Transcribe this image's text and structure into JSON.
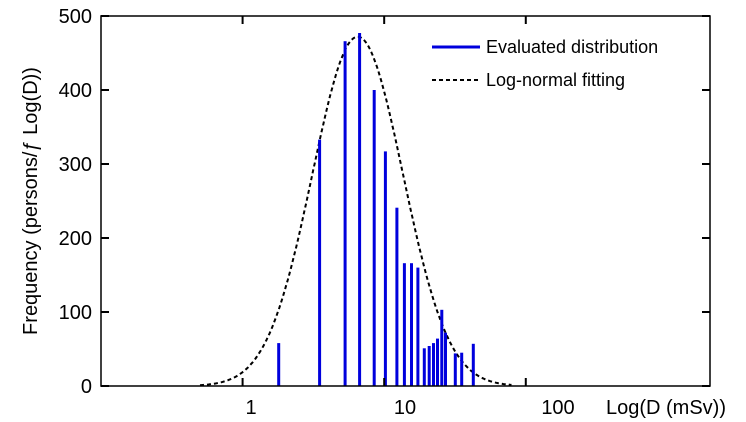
{
  "chart_data": {
    "type": "bar",
    "xscale": "log",
    "xlim": [
      0.1,
      2000
    ],
    "ylim": [
      0,
      500
    ],
    "xlabel": "Log(D (mSv))",
    "ylabel": "Frequency (persons/ƒ  Log(D))",
    "xticks": [
      {
        "value": 1,
        "label": "1"
      },
      {
        "value": 10,
        "label": "10"
      },
      {
        "value": 100,
        "label": "100"
      }
    ],
    "yticks": [
      {
        "value": 0,
        "label": "0"
      },
      {
        "value": 100,
        "label": "100"
      },
      {
        "value": 200,
        "label": "200"
      },
      {
        "value": 300,
        "label": "300"
      },
      {
        "value": 400,
        "label": "400"
      },
      {
        "value": 500,
        "label": "500"
      }
    ],
    "bar_color": "#0000dd",
    "fit_color": "#000000",
    "bars": [
      {
        "x": 1.8,
        "y": 58
      },
      {
        "x": 3.5,
        "y": 333
      },
      {
        "x": 5.3,
        "y": 466
      },
      {
        "x": 6.7,
        "y": 477
      },
      {
        "x": 8.5,
        "y": 400
      },
      {
        "x": 10.2,
        "y": 317
      },
      {
        "x": 12.3,
        "y": 241
      },
      {
        "x": 13.9,
        "y": 166
      },
      {
        "x": 15.6,
        "y": 166
      },
      {
        "x": 17.3,
        "y": 160
      },
      {
        "x": 19.2,
        "y": 51
      },
      {
        "x": 20.8,
        "y": 54
      },
      {
        "x": 22.3,
        "y": 58
      },
      {
        "x": 23.8,
        "y": 64
      },
      {
        "x": 25.5,
        "y": 103
      },
      {
        "x": 27.1,
        "y": 72
      },
      {
        "x": 31.8,
        "y": 44
      },
      {
        "x": 35.3,
        "y": 45
      },
      {
        "x": 42.6,
        "y": 57
      }
    ],
    "fit": {
      "type": "log-normal",
      "peak": 472,
      "mode": 6.5,
      "sigma_log10": 0.32
    },
    "series": [
      {
        "name": "Evaluated distribution",
        "style": "bars"
      },
      {
        "name": "Log-normal fitting",
        "style": "dashed-line"
      }
    ],
    "legend_position": "top-right",
    "grid": false
  }
}
